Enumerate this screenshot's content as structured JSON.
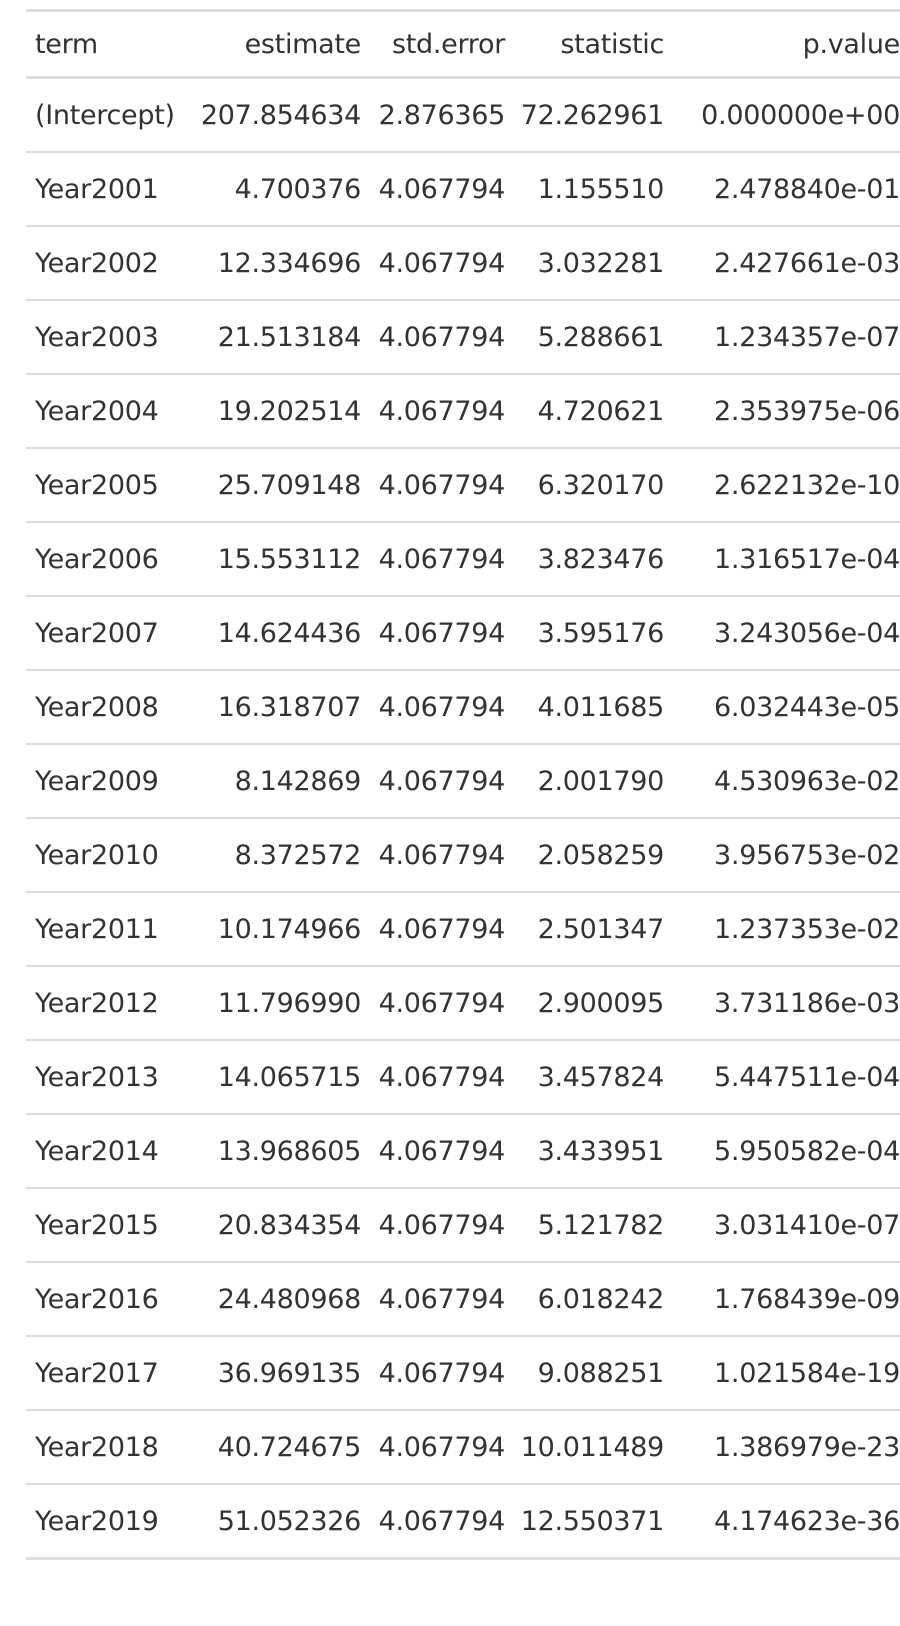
{
  "table": {
    "headers": [
      "term",
      "estimate",
      "std.error",
      "statistic",
      "p.value"
    ],
    "rows": [
      [
        "(Intercept)",
        "207.854634",
        "2.876365",
        "72.262961",
        "0.000000e+00"
      ],
      [
        "Year2001",
        "4.700376",
        "4.067794",
        "1.155510",
        "2.478840e-01"
      ],
      [
        "Year2002",
        "12.334696",
        "4.067794",
        "3.032281",
        "2.427661e-03"
      ],
      [
        "Year2003",
        "21.513184",
        "4.067794",
        "5.288661",
        "1.234357e-07"
      ],
      [
        "Year2004",
        "19.202514",
        "4.067794",
        "4.720621",
        "2.353975e-06"
      ],
      [
        "Year2005",
        "25.709148",
        "4.067794",
        "6.320170",
        "2.622132e-10"
      ],
      [
        "Year2006",
        "15.553112",
        "4.067794",
        "3.823476",
        "1.316517e-04"
      ],
      [
        "Year2007",
        "14.624436",
        "4.067794",
        "3.595176",
        "3.243056e-04"
      ],
      [
        "Year2008",
        "16.318707",
        "4.067794",
        "4.011685",
        "6.032443e-05"
      ],
      [
        "Year2009",
        "8.142869",
        "4.067794",
        "2.001790",
        "4.530963e-02"
      ],
      [
        "Year2010",
        "8.372572",
        "4.067794",
        "2.058259",
        "3.956753e-02"
      ],
      [
        "Year2011",
        "10.174966",
        "4.067794",
        "2.501347",
        "1.237353e-02"
      ],
      [
        "Year2012",
        "11.796990",
        "4.067794",
        "2.900095",
        "3.731186e-03"
      ],
      [
        "Year2013",
        "14.065715",
        "4.067794",
        "3.457824",
        "5.447511e-04"
      ],
      [
        "Year2014",
        "13.968605",
        "4.067794",
        "3.433951",
        "5.950582e-04"
      ],
      [
        "Year2015",
        "20.834354",
        "4.067794",
        "5.121782",
        "3.031410e-07"
      ],
      [
        "Year2016",
        "24.480968",
        "4.067794",
        "6.018242",
        "1.768439e-09"
      ],
      [
        "Year2017",
        "36.969135",
        "4.067794",
        "9.088251",
        "1.021584e-19"
      ],
      [
        "Year2018",
        "40.724675",
        "4.067794",
        "10.011489",
        "1.386979e-23"
      ],
      [
        "Year2019",
        "51.052326",
        "4.067794",
        "12.550371",
        "4.174623e-36"
      ]
    ]
  }
}
